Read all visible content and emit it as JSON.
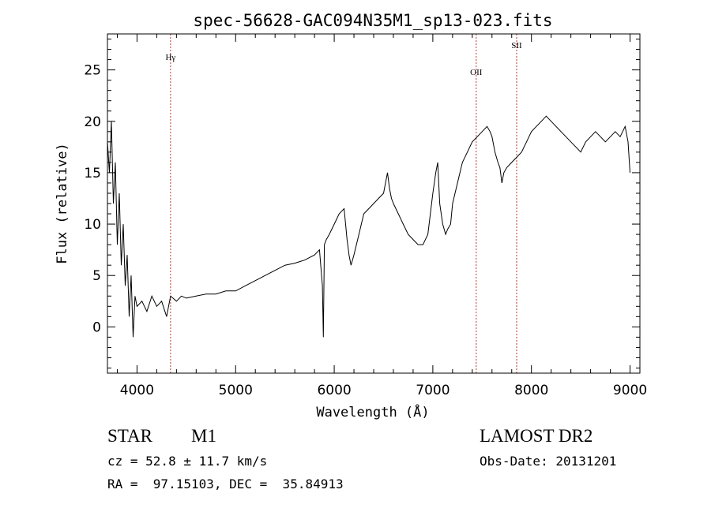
{
  "chart_data": {
    "type": "line",
    "title": "spec-56628-GAC094N35M1_sp13-023.fits",
    "xlabel": "Wavelength (Å)",
    "ylabel": "Flux (relative)",
    "xlim": [
      3700,
      9100
    ],
    "ylim": [
      -4.5,
      28.5
    ],
    "xticks": [
      4000,
      5000,
      6000,
      7000,
      8000,
      9000
    ],
    "yticks": [
      0,
      5,
      10,
      15,
      20,
      25
    ],
    "lines": [
      {
        "label": "Hγ",
        "x": 4340
      },
      {
        "label": "OII",
        "x": 7440
      },
      {
        "label": "SII",
        "x": 7850
      }
    ],
    "line_color": "#c0392b",
    "series": [
      {
        "x": [
          3700,
          3720,
          3740,
          3760,
          3780,
          3800,
          3820,
          3840,
          3860,
          3880,
          3900,
          3920,
          3940,
          3960,
          3980,
          4000,
          4050,
          4100,
          4150,
          4200,
          4250,
          4300,
          4340,
          4400,
          4450,
          4500,
          4600,
          4700,
          4800,
          4900,
          5000,
          5100,
          5200,
          5300,
          5400,
          5500,
          5600,
          5700,
          5800,
          5850,
          5880,
          5890,
          5900,
          5920,
          5950,
          6000,
          6050,
          6100,
          6130,
          6150,
          6170,
          6200,
          6250,
          6300,
          6350,
          6400,
          6450,
          6500,
          6520,
          6540,
          6560,
          6580,
          6600,
          6650,
          6700,
          6750,
          6800,
          6850,
          6900,
          6950,
          7000,
          7030,
          7050,
          7070,
          7100,
          7130,
          7150,
          7180,
          7200,
          7250,
          7300,
          7350,
          7400,
          7450,
          7500,
          7550,
          7580,
          7600,
          7630,
          7660,
          7680,
          7700,
          7720,
          7750,
          7800,
          7850,
          7900,
          7950,
          8000,
          8050,
          8100,
          8150,
          8200,
          8250,
          8300,
          8350,
          8400,
          8450,
          8500,
          8550,
          8600,
          8650,
          8700,
          8750,
          8800,
          8850,
          8900,
          8950,
          8980,
          9000
        ],
        "values": [
          18,
          15,
          20,
          12,
          16,
          8,
          13,
          6,
          10,
          4,
          7,
          1,
          5,
          -1,
          3,
          2,
          2.5,
          1.5,
          3,
          2,
          2.5,
          1,
          3,
          2.5,
          3,
          2.8,
          3,
          3.2,
          3.2,
          3.5,
          3.5,
          4,
          4.5,
          5,
          5.5,
          6,
          6.2,
          6.5,
          7,
          7.5,
          4,
          -1,
          8,
          8.5,
          9,
          10,
          11,
          11.5,
          8.5,
          7,
          6,
          7,
          9,
          11,
          11.5,
          12,
          12.5,
          13,
          14,
          15,
          13.5,
          12.5,
          12,
          11,
          10,
          9,
          8.5,
          8,
          8,
          9,
          13,
          15,
          16,
          12,
          10,
          9,
          9.5,
          10,
          12,
          14,
          16,
          17,
          18,
          18.5,
          19,
          19.5,
          19,
          18.5,
          17,
          16,
          15.5,
          14,
          15,
          15.5,
          16,
          16.5,
          17,
          18,
          19,
          19.5,
          20,
          20.5,
          20,
          19.5,
          19,
          18.5,
          18,
          17.5,
          17,
          18,
          18.5,
          19,
          18.5,
          18,
          18.5,
          19,
          18.5,
          19.5,
          18,
          15
        ]
      }
    ]
  },
  "info": {
    "object_class": "STAR",
    "subclass": "M1",
    "survey": "LAMOST DR2",
    "cz": "cz = 52.8 ± 11.7 km/s",
    "obs_date": "Obs-Date: 20131201",
    "coords": "RA =  97.15103, DEC =  35.84913"
  }
}
